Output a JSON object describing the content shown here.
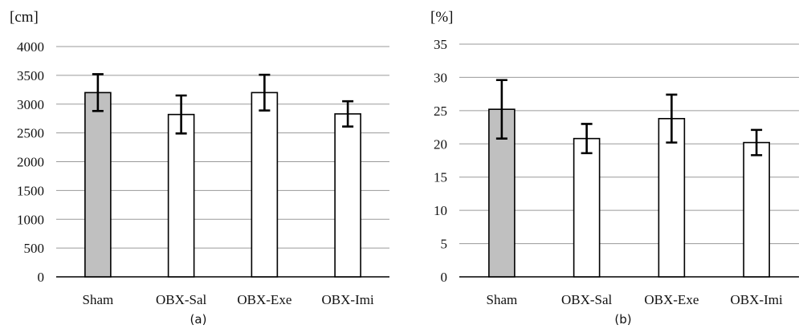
{
  "colors": {
    "sham": "#c0c0c0",
    "obx": "#ffffff"
  },
  "chart_data": [
    {
      "type": "bar",
      "unit_label": "[cm]",
      "caption": "(a)",
      "categories": [
        "Sham",
        "OBX-Sal",
        "OBX-Exe",
        "OBX-Imi"
      ],
      "values": [
        3200,
        2820,
        3200,
        2830
      ],
      "errors": [
        320,
        330,
        310,
        220
      ],
      "ylim": [
        0,
        4000
      ],
      "yticks": [
        "0",
        "500",
        "1000",
        "1500",
        "2000",
        "2500",
        "3000",
        "3500",
        "4000"
      ],
      "grid": true,
      "legend": "none"
    },
    {
      "type": "bar",
      "unit_label": "[%]",
      "caption": "(b)",
      "categories": [
        "Sham",
        "OBX-Sal",
        "OBX-Exe",
        "OBX-Imi"
      ],
      "values": [
        25.2,
        20.8,
        23.8,
        20.2
      ],
      "errors": [
        4.4,
        2.2,
        3.6,
        1.9
      ],
      "ylim": [
        0,
        35
      ],
      "yticks": [
        "0",
        "5",
        "10",
        "15",
        "20",
        "25",
        "30",
        "35"
      ],
      "grid": true,
      "legend": "none"
    }
  ]
}
